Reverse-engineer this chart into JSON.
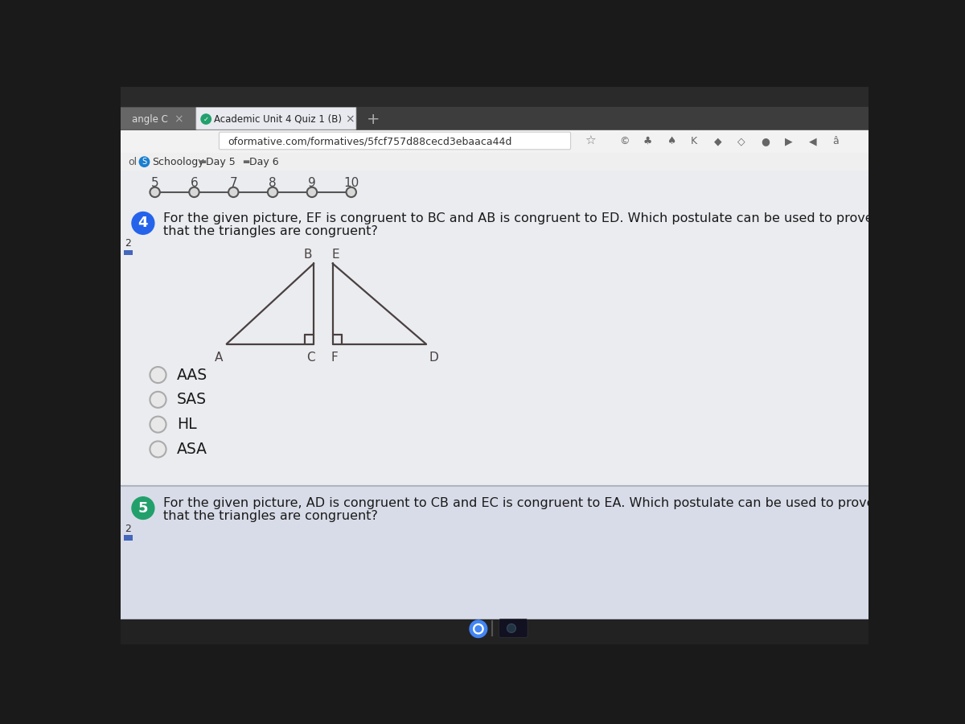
{
  "bg_color": "#1a1a1a",
  "content_bg": "#e8eaf0",
  "tab_bar_bg": "#3a3a3a",
  "tab_text": "Academic Unit 4 Quiz 1 (B)",
  "url_text": "oformative.com/formatives/5fcf757d88cecd3ebaaca44d",
  "nav_numbers": [
    "5",
    "6",
    "7",
    "8",
    "9",
    "10"
  ],
  "q4_text_line1": "For the given picture, EF is congruent to BC and AB is congruent to ED. Which postulate can be used to prove",
  "q4_text_line2": "that the triangles are congruent?",
  "options": [
    "AAS",
    "SAS",
    "HL",
    "ASA"
  ],
  "q5_text_line1": "For the given picture, AD is congruent to CB and EC is congruent to EA. Which postulate can be used to prove",
  "q5_text_line2": "that the triangles are congruent?",
  "line_color": "#4a4040",
  "text_color": "#1a1a1a",
  "q_bubble_color": "#2563eb",
  "q5_bubble_color": "#22a06b",
  "tab1_bg": "#555555",
  "tab2_bg": "#cccccc",
  "tab_active_bg": "#e8eaf0",
  "url_bar_bg": "#f2f2f2",
  "bm_bar_bg": "#efefef",
  "content_main_bg": "#e4e8ee",
  "content_lower_bg": "#c8ccd8",
  "separator_color": "#b0b4bc",
  "taskbar_bg": "#222222",
  "nav_line_color": "#555555",
  "nav_circle_bg": "#e0e0e0",
  "option_circle_bg": "#e8e8e8",
  "option_circle_ec": "#aaaaaa"
}
